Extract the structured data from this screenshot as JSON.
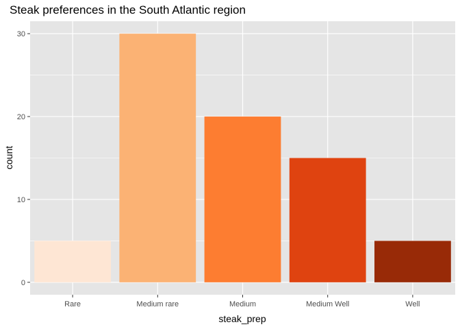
{
  "chart_data": {
    "type": "bar",
    "title": "Steak preferences in the South Atlantic region",
    "xlabel": "steak_prep",
    "ylabel": "count",
    "categories": [
      "Rare",
      "Medium rare",
      "Medium",
      "Medium Well",
      "Well"
    ],
    "values": [
      5,
      30,
      20,
      15,
      5
    ],
    "colors": [
      "#FEE6D4",
      "#FBB274",
      "#FD7D31",
      "#DF4310",
      "#982A07"
    ],
    "yticks": [
      0,
      10,
      20,
      30
    ],
    "ylim": [
      -1.5,
      31.5
    ],
    "grid": true,
    "legend": "none",
    "panel_background": "#E5E5E5",
    "gridline_color": "#FFFFFF"
  }
}
